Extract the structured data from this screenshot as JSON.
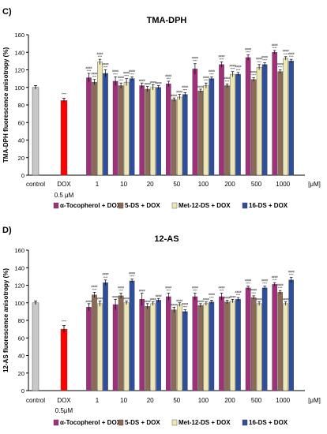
{
  "chart_data": [
    {
      "type": "bar",
      "panel_label": "C)",
      "title": "TMA-DPH",
      "ylabel": "TMA-DPH fluorescence anisotropy (%)",
      "ylim": [
        0,
        160
      ],
      "yticks": [
        0,
        20,
        40,
        60,
        80,
        100,
        120,
        140,
        160
      ],
      "grid": false,
      "unit_label": "[μM]",
      "controls": [
        {
          "name": "control",
          "value": 100,
          "err": 2,
          "color": "#c8c8c8",
          "sig": ""
        },
        {
          "name": "DOX",
          "sub": "0.5 μM",
          "value": 85,
          "err": 2.5,
          "color": "#ff0000",
          "sig": "****"
        }
      ],
      "categories": [
        "1",
        "10",
        "20",
        "50",
        "100",
        "200",
        "500",
        "1000"
      ],
      "series": [
        {
          "name": "α-Tocopherol + DOX",
          "color": "#a0307a",
          "values": [
            111,
            107,
            102,
            104,
            121,
            126,
            134,
            140
          ],
          "errors": [
            5,
            5,
            3,
            3,
            6,
            3,
            3,
            2
          ],
          "sig": [
            [
              "####",
              "****"
            ],
            [
              "####",
              "****"
            ],
            [
              "####"
            ],
            [
              "####",
              "****"
            ],
            [
              "####",
              "****"
            ],
            [
              "####",
              "****"
            ],
            [
              "####",
              "****"
            ],
            [
              "####",
              "****"
            ]
          ]
        },
        {
          "name": "5-DS + DOX",
          "color": "#8c6a58",
          "values": [
            106,
            102,
            98,
            86,
            96,
            102,
            109,
            118
          ],
          "errors": [
            3,
            3,
            3,
            2,
            2,
            2,
            2,
            2
          ],
          "sig": [
            [
              "####",
              "****"
            ],
            [
              "####",
              "****"
            ],
            [
              "####"
            ],
            [
              "####"
            ],
            [
              "####"
            ],
            [
              "####",
              "****"
            ],
            [
              "####",
              "****"
            ],
            [
              "####",
              "****"
            ]
          ]
        },
        {
          "name": "Met-12-DS + DOX",
          "color": "#ece7b4",
          "values": [
            129,
            106,
            100,
            89,
            102,
            115,
            123,
            133
          ],
          "errors": [
            3,
            4,
            3,
            3,
            3,
            3,
            3,
            2
          ],
          "sig": [
            [
              "####",
              "****"
            ],
            [
              "####",
              "****"
            ],
            [
              "####"
            ],
            [
              "####"
            ],
            [
              "####",
              "****"
            ],
            [
              "####",
              "****"
            ],
            [
              "####",
              "****"
            ],
            [
              "####",
              "****"
            ]
          ]
        },
        {
          "name": "16-DS + DOX",
          "color": "#2e4f9c",
          "values": [
            116,
            110,
            100,
            92,
            110,
            115,
            126,
            130
          ],
          "errors": [
            4,
            2,
            2,
            2,
            2,
            2,
            2,
            2
          ],
          "sig": [
            [
              "####",
              "****"
            ],
            [
              "####",
              "****"
            ],
            [
              "####"
            ],
            [
              "####",
              "****"
            ],
            [
              "####",
              "****"
            ],
            [
              "####",
              "****"
            ],
            [
              "####",
              "****"
            ],
            [
              "####",
              "****"
            ]
          ]
        }
      ]
    },
    {
      "type": "bar",
      "panel_label": "D)",
      "title": "12-AS",
      "ylabel": "12-AS fluorescence anisotropy (%)",
      "ylim": [
        0,
        160
      ],
      "yticks": [
        0,
        20,
        40,
        60,
        80,
        100,
        120,
        140,
        160
      ],
      "grid": false,
      "unit_label": "[μM]",
      "controls": [
        {
          "name": "control",
          "value": 100,
          "err": 2,
          "color": "#c8c8c8",
          "sig": ""
        },
        {
          "name": "DOX",
          "sub": "0.5μM",
          "value": 70,
          "err": 4,
          "color": "#ff0000",
          "sig": "****"
        }
      ],
      "categories": [
        "1",
        "10",
        "20",
        "50",
        "100",
        "200",
        "500",
        "1000"
      ],
      "series": [
        {
          "name": "α-Tocopherol + DOX",
          "color": "#a0307a",
          "values": [
            95,
            98,
            104,
            107,
            107,
            107,
            117,
            121
          ],
          "errors": [
            4,
            6,
            7,
            4,
            4,
            4,
            2,
            2
          ],
          "sig": [
            [
              "####"
            ],
            [
              "####"
            ],
            [
              "####"
            ],
            [
              "####",
              "****"
            ],
            [
              "####",
              "****"
            ],
            [
              "####",
              "****"
            ],
            [
              "####",
              "****"
            ],
            [
              "####",
              "****"
            ]
          ]
        },
        {
          "name": "5-DS + DOX",
          "color": "#8c6a58",
          "values": [
            109,
            108,
            96,
            92,
            97,
            101,
            106,
            112
          ],
          "errors": [
            3,
            3,
            3,
            3,
            2,
            2,
            2,
            2
          ],
          "sig": [
            [
              "####",
              "****"
            ],
            [
              "####",
              "****"
            ],
            [
              "####"
            ],
            [
              "####"
            ],
            [
              "####"
            ],
            [
              "####"
            ],
            [
              "####",
              "****"
            ],
            [
              "####",
              "****"
            ]
          ]
        },
        {
          "name": "Met-12-DS + DOX",
          "color": "#ece7b4",
          "values": [
            99,
            100,
            99,
            98,
            99,
            102,
            99,
            99
          ],
          "errors": [
            3,
            2,
            2,
            2,
            2,
            2,
            2,
            2
          ],
          "sig": [
            [
              "####"
            ],
            [
              "####"
            ],
            [
              "####"
            ],
            [
              "####"
            ],
            [
              "####"
            ],
            [
              "####"
            ],
            [
              "####"
            ],
            [
              "####"
            ]
          ]
        },
        {
          "name": "16-DS + DOX",
          "color": "#2e4f9c",
          "values": [
            123,
            125,
            103,
            90,
            101,
            104,
            117,
            126
          ],
          "errors": [
            3,
            2,
            2,
            2,
            2,
            2,
            2,
            3
          ],
          "sig": [
            [
              "####",
              "****"
            ],
            [
              "####",
              "****"
            ],
            [
              "####"
            ],
            [
              "####",
              "****"
            ],
            [
              "####",
              "****"
            ],
            [
              "####",
              "****"
            ],
            [
              "####",
              "****"
            ],
            [
              "####",
              "****"
            ]
          ]
        }
      ]
    }
  ]
}
